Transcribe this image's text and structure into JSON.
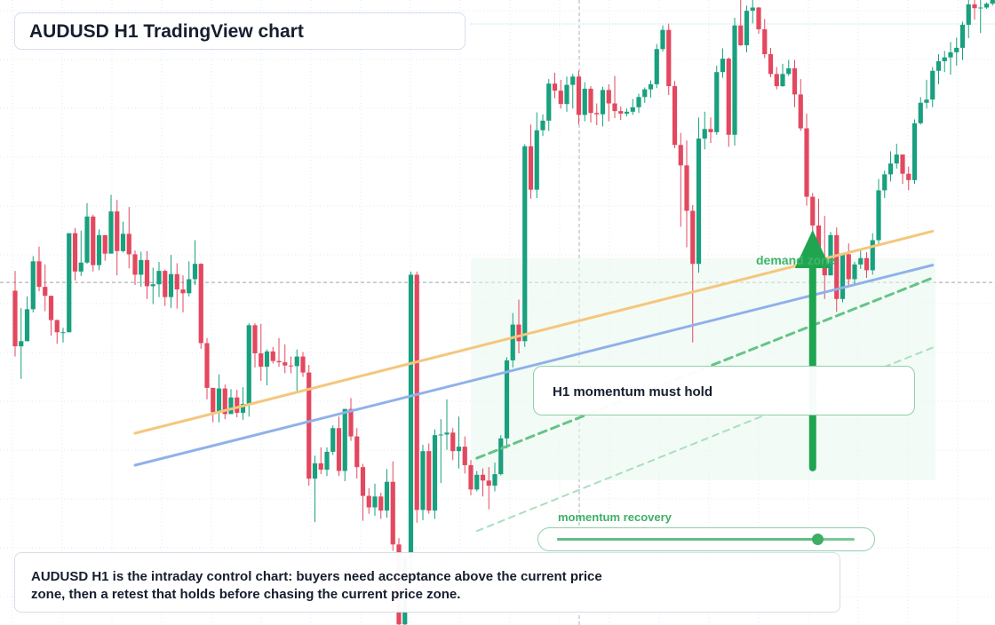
{
  "title": "AUDUSD H1 TradingView chart",
  "annotations": {
    "zone_label": "demand zone",
    "note": "H1 momentum must hold",
    "momentum_label": "momentum recovery",
    "momentum_level": 0.87
  },
  "caption": {
    "line1": "AUDUSD H1 is the intraday control chart: buyers need acceptance above the current price",
    "line2": "zone, then a retest that holds before chasing the current price zone."
  },
  "colors": {
    "bull": "#19a07e",
    "bear": "#e3485f",
    "trend_orange": "#f4c77d",
    "trend_blue": "#8fb1ea",
    "accent_green": "#1fa54f"
  },
  "chart_data": {
    "type": "candlestick",
    "symbol": "AUDUSD",
    "timeframe": "H1",
    "grid": true,
    "price_scale": [
      0,
      100
    ],
    "reference_price": 53.6,
    "candles": [
      [
        52.3,
        55.4,
        42.0,
        43.6
      ],
      [
        43.6,
        49.6,
        38.5,
        44.4
      ],
      [
        44.4,
        51.4,
        44.4,
        49.4
      ],
      [
        49.4,
        57.7,
        48.9,
        56.9
      ],
      [
        56.9,
        59.2,
        52.2,
        52.9
      ],
      [
        52.9,
        56.4,
        49.1,
        51.5
      ],
      [
        51.5,
        51.5,
        45.3,
        47.7
      ],
      [
        47.7,
        47.8,
        44.0,
        45.8
      ],
      [
        45.8,
        46.5,
        44.2,
        45.8
      ],
      [
        45.8,
        60.9,
        45.8,
        61.3
      ],
      [
        61.3,
        62.1,
        53.9,
        55.3
      ],
      [
        55.3,
        61.7,
        54.6,
        56.7
      ],
      [
        56.7,
        66.0,
        56.5,
        63.9
      ],
      [
        63.9,
        64.2,
        55.3,
        56.3
      ],
      [
        56.3,
        61.9,
        55.5,
        61.0
      ],
      [
        61.0,
        60.1,
        57.0,
        58.1
      ],
      [
        58.1,
        67.3,
        58.1,
        64.7
      ],
      [
        64.7,
        66.5,
        54.7,
        58.5
      ],
      [
        58.5,
        63.1,
        58.3,
        61.2
      ],
      [
        61.2,
        65.4,
        55.8,
        58.0
      ],
      [
        58.0,
        58.6,
        53.2,
        54.8
      ],
      [
        54.8,
        58.4,
        52.9,
        57.1
      ],
      [
        57.1,
        58.5,
        51.0,
        53.0
      ],
      [
        53.0,
        55.9,
        50.2,
        53.3
      ],
      [
        53.3,
        56.8,
        51.3,
        55.4
      ],
      [
        55.4,
        55.6,
        49.9,
        51.3
      ],
      [
        51.3,
        57.9,
        49.6,
        54.9
      ],
      [
        54.9,
        56.6,
        49.5,
        52.5
      ],
      [
        52.5,
        54.7,
        48.9,
        51.9
      ],
      [
        51.9,
        56.9,
        51.4,
        54.1
      ],
      [
        54.1,
        60.2,
        53.2,
        56.5
      ],
      [
        56.5,
        56.6,
        43.2,
        44.1
      ],
      [
        44.1,
        44.9,
        35.3,
        37.1
      ],
      [
        37.1,
        37.1,
        31.7,
        33.3
      ],
      [
        33.3,
        39.2,
        31.7,
        37.0
      ],
      [
        37.0,
        37.6,
        32.2,
        33.0
      ],
      [
        33.0,
        36.9,
        33.4,
        35.6
      ],
      [
        35.6,
        36.8,
        32.5,
        33.2
      ],
      [
        33.2,
        37.2,
        32.1,
        34.6
      ],
      [
        34.6,
        47.2,
        32.6,
        46.9
      ],
      [
        46.9,
        47.2,
        40.3,
        42.5
      ],
      [
        42.5,
        47.1,
        38.2,
        40.4
      ],
      [
        40.4,
        43.1,
        37.5,
        42.8
      ],
      [
        42.8,
        43.5,
        40.9,
        41.3
      ],
      [
        41.3,
        44.9,
        40.4,
        41.1
      ],
      [
        41.1,
        43.9,
        39.4,
        40.6
      ],
      [
        40.6,
        42.0,
        39.4,
        40.5
      ],
      [
        40.5,
        43.1,
        36.4,
        42.0
      ],
      [
        42.0,
        42.7,
        38.8,
        39.5
      ],
      [
        39.5,
        40.7,
        21.8,
        22.9
      ],
      [
        22.9,
        26.5,
        16.1,
        25.3
      ],
      [
        25.3,
        27.8,
        23.6,
        24.3
      ],
      [
        24.3,
        27.8,
        23.3,
        27.1
      ],
      [
        27.1,
        31.2,
        26.6,
        30.8
      ],
      [
        30.8,
        32.6,
        23.3,
        24.1
      ],
      [
        24.1,
        33.8,
        22.5,
        33.8
      ],
      [
        33.8,
        35.5,
        28.8,
        29.5
      ],
      [
        29.5,
        30.8,
        22.9,
        24.7
      ],
      [
        24.7,
        25.2,
        16.3,
        20.2
      ],
      [
        20.2,
        21.4,
        17.4,
        18.4
      ],
      [
        18.4,
        22.1,
        17.1,
        20.1
      ],
      [
        20.1,
        20.7,
        16.6,
        17.9
      ],
      [
        17.9,
        24.4,
        16.8,
        22.4
      ],
      [
        22.4,
        25.6,
        11.6,
        12.6
      ],
      [
        12.6,
        13.6,
        -0.8,
        0.1
      ],
      [
        0.1,
        11.0,
        -3.0,
        10.5
      ],
      [
        10.5,
        55.3,
        9.1,
        54.8
      ],
      [
        54.8,
        55.3,
        16.0,
        18.0
      ],
      [
        18.0,
        28.2,
        16.4,
        27.2
      ],
      [
        27.2,
        28.4,
        17.4,
        17.9
      ],
      [
        17.9,
        30.6,
        16.6,
        29.7
      ],
      [
        29.7,
        32.2,
        22.2,
        29.8
      ],
      [
        29.8,
        35.3,
        27.4,
        30.1
      ],
      [
        30.1,
        30.8,
        25.8,
        27.2
      ],
      [
        27.2,
        32.6,
        24.5,
        27.9
      ],
      [
        27.9,
        29.5,
        23.7,
        25.0
      ],
      [
        25.0,
        25.8,
        20.3,
        21.2
      ],
      [
        21.2,
        24.1,
        20.9,
        23.5
      ],
      [
        23.5,
        24.5,
        20.1,
        22.6
      ],
      [
        22.6,
        24.7,
        18.1,
        21.8
      ],
      [
        21.8,
        25.4,
        20.9,
        23.6
      ],
      [
        23.6,
        29.7,
        23.4,
        29.2
      ],
      [
        29.2,
        41.9,
        27.6,
        41.4
      ],
      [
        41.4,
        48.8,
        40.3,
        47.0
      ],
      [
        47.0,
        50.9,
        42.5,
        44.4
      ],
      [
        44.4,
        75.2,
        43.5,
        74.9
      ],
      [
        74.9,
        78.3,
        66.7,
        68.1
      ],
      [
        68.1,
        80.2,
        66.8,
        77.4
      ],
      [
        77.4,
        79.9,
        76.5,
        78.9
      ],
      [
        78.9,
        85.4,
        77.3,
        84.7
      ],
      [
        84.7,
        86.4,
        82.4,
        83.6
      ],
      [
        83.6,
        85.3,
        80.8,
        81.5
      ],
      [
        81.5,
        85.8,
        80.3,
        84.5
      ],
      [
        84.5,
        86.2,
        80.8,
        85.8
      ],
      [
        85.8,
        86.7,
        78.3,
        79.8
      ],
      [
        79.8,
        84.9,
        78.8,
        83.9
      ],
      [
        83.9,
        84.3,
        78.6,
        80.1
      ],
      [
        80.1,
        81.6,
        78.2,
        79.9
      ],
      [
        79.9,
        84.2,
        78.0,
        83.7
      ],
      [
        83.7,
        84.6,
        78.8,
        81.6
      ],
      [
        81.6,
        85.9,
        79.3,
        80.4
      ],
      [
        80.4,
        81.1,
        79.0,
        80.0
      ],
      [
        80.0,
        80.8,
        79.6,
        80.3
      ],
      [
        80.3,
        82.3,
        79.8,
        81.0
      ],
      [
        81.0,
        83.1,
        80.1,
        82.6
      ],
      [
        82.6,
        84.1,
        81.7,
        83.8
      ],
      [
        83.8,
        85.2,
        82.5,
        84.6
      ],
      [
        84.6,
        90.9,
        84.0,
        90.1
      ],
      [
        90.1,
        93.8,
        89.7,
        93.1
      ],
      [
        93.1,
        94.1,
        82.9,
        84.3
      ],
      [
        84.3,
        85.1,
        74.6,
        75.1
      ],
      [
        75.1,
        77.0,
        62.3,
        71.9
      ],
      [
        71.9,
        75.8,
        59.1,
        64.8
      ],
      [
        64.8,
        65.7,
        44.2,
        56.5
      ],
      [
        56.5,
        79.4,
        55.1,
        76.1
      ],
      [
        76.1,
        80.3,
        74.4,
        77.6
      ],
      [
        77.6,
        79.4,
        75.4,
        77.1
      ],
      [
        77.1,
        87.5,
        76.7,
        86.5
      ],
      [
        86.5,
        90.2,
        85.6,
        88.6
      ],
      [
        88.6,
        88.8,
        74.8,
        76.7
      ],
      [
        76.7,
        95.0,
        75.0,
        93.8
      ],
      [
        93.8,
        98.7,
        90.6,
        90.7
      ],
      [
        90.7,
        96.9,
        89.6,
        96.1
      ],
      [
        96.1,
        99.4,
        94.1,
        96.6
      ],
      [
        96.6,
        96.7,
        92.5,
        93.2
      ],
      [
        93.2,
        94.8,
        88.7,
        89.3
      ],
      [
        89.3,
        90.3,
        85.7,
        86.2
      ],
      [
        86.2,
        87.3,
        83.8,
        84.3
      ],
      [
        84.3,
        87.8,
        84.2,
        86.2
      ],
      [
        86.2,
        88.4,
        85.9,
        87.1
      ],
      [
        87.1,
        88.4,
        81.0,
        83.0
      ],
      [
        83.0,
        85.4,
        77.3,
        77.7
      ],
      [
        77.7,
        80.0,
        65.6,
        67.0
      ],
      [
        67.0,
        67.6,
        60.8,
        62.5
      ],
      [
        62.5,
        66.7,
        56.1,
        56.7
      ],
      [
        56.7,
        64.0,
        51.0,
        54.7
      ],
      [
        54.7,
        61.5,
        54.7,
        61.0
      ],
      [
        61.0,
        62.2,
        49.0,
        51.0
      ],
      [
        51.0,
        58.1,
        50.5,
        58.0
      ],
      [
        58.0,
        59.7,
        53.0,
        54.1
      ],
      [
        54.1,
        56.8,
        53.3,
        56.4
      ],
      [
        56.4,
        58.8,
        55.7,
        57.4
      ],
      [
        57.4,
        58.3,
        54.3,
        55.5
      ],
      [
        55.5,
        61.3,
        54.8,
        60.2
      ],
      [
        60.2,
        69.8,
        59.5,
        68.0
      ],
      [
        68.0,
        71.1,
        66.8,
        70.5
      ],
      [
        70.5,
        74.1,
        69.4,
        72.2
      ],
      [
        72.2,
        75.3,
        71.4,
        73.6
      ],
      [
        73.6,
        73.6,
        69.0,
        70.6
      ],
      [
        70.6,
        71.7,
        68.0,
        69.6
      ],
      [
        69.6,
        79.1,
        69.0,
        78.5
      ],
      [
        78.5,
        82.6,
        78.3,
        81.7
      ],
      [
        81.7,
        85.3,
        80.8,
        82.2
      ],
      [
        82.2,
        87.3,
        81.0,
        86.7
      ],
      [
        86.7,
        89.3,
        84.6,
        88.2
      ],
      [
        88.2,
        89.8,
        86.5,
        88.8
      ],
      [
        88.8,
        91.2,
        86.1,
        89.6
      ],
      [
        89.6,
        91.9,
        87.5,
        90.3
      ],
      [
        90.3,
        94.4,
        88.4,
        93.9
      ],
      [
        93.9,
        98.4,
        91.8,
        97.1
      ],
      [
        97.1,
        98.1,
        94.7,
        96.5
      ],
      [
        96.5,
        98.3,
        92.6,
        96.6
      ],
      [
        96.6,
        97.4,
        96.4,
        97.2
      ],
      [
        97.2,
        98.6,
        96.9,
        98.1
      ]
    ],
    "trendlines": [
      {
        "color": "orange",
        "from": [
          20,
          30.0
        ],
        "to": [
          153,
          61.6
        ],
        "style": "solid"
      },
      {
        "color": "blue",
        "from": [
          20,
          25.0
        ],
        "to": [
          153,
          56.3
        ],
        "style": "solid"
      },
      {
        "color": "green",
        "from": [
          77,
          26.1
        ],
        "to": [
          153,
          54.3
        ],
        "style": "dashed"
      },
      {
        "color": "green-faint",
        "from": [
          77,
          14.7
        ],
        "to": [
          153,
          43.4
        ],
        "style": "dashed"
      }
    ],
    "arrow": {
      "index": 133,
      "from": 24.6,
      "to": 61.8
    }
  }
}
